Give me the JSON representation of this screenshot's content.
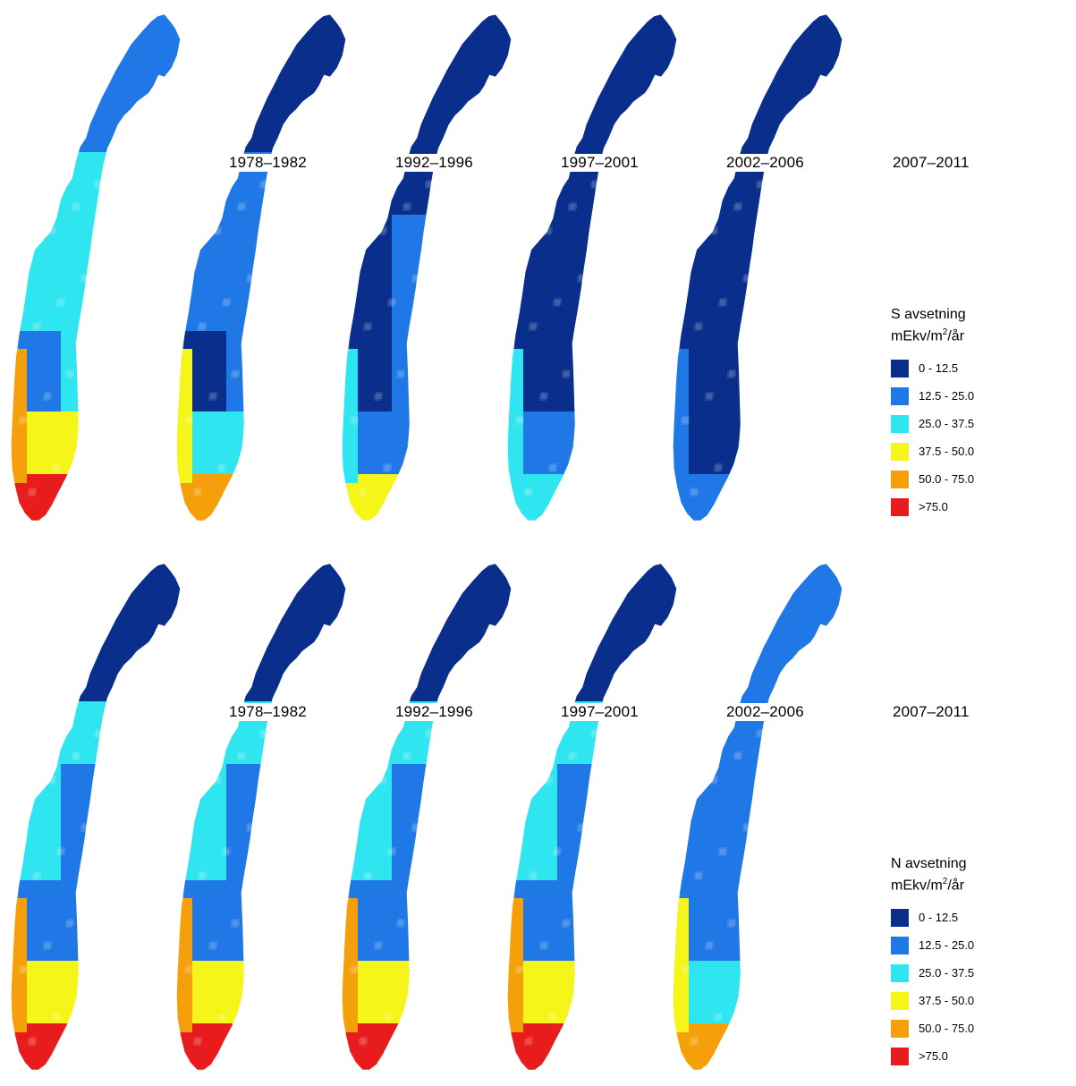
{
  "palette": {
    "0_12_5": "#0a2e8c",
    "12_5_25": "#1f78e6",
    "25_37_5": "#2fe6f0",
    "37_5_50": "#f6f51a",
    "50_75": "#f5a00a",
    "gt_75": "#e81c1c"
  },
  "periods": [
    "1978–1982",
    "1992–1996",
    "1997–2001",
    "2002–2006",
    "2007–2011"
  ],
  "panels": [
    {
      "id": "s",
      "legend": {
        "title": "S avsetning",
        "units_prefix": "mEkv/m",
        "units_sup": "2",
        "units_suffix": "/år",
        "items": [
          {
            "label": "0 - 12.5",
            "color": "#0a2e8c"
          },
          {
            "label": "12.5 - 25.0",
            "color": "#1f78e6"
          },
          {
            "label": "25.0 - 37.5",
            "color": "#2fe6f0"
          },
          {
            "label": "37.5 - 50.0",
            "color": "#f6f51a"
          },
          {
            "label": "50.0 - 75.0",
            "color": "#f5a00a"
          },
          {
            "label": ">75.0",
            "color": "#e81c1c"
          }
        ]
      },
      "maps": [
        {
          "period": "1978–1982",
          "north": "#1f78e6",
          "coast": "#2fe6f0",
          "central": "#1f78e6",
          "east": "#2fe6f0",
          "south_belt": "#f6f51a",
          "southwest": "#f5a00a",
          "south_tip": "#e81c1c"
        },
        {
          "period": "1992–1996",
          "north": "#0a2e8c",
          "coast": "#1f78e6",
          "central": "#0a2e8c",
          "east": "#1f78e6",
          "south_belt": "#2fe6f0",
          "southwest": "#f6f51a",
          "south_tip": "#f5a00a"
        },
        {
          "period": "1997–2001",
          "north": "#0a2e8c",
          "coast": "#0a2e8c",
          "central": "#0a2e8c",
          "east": "#1f78e6",
          "south_belt": "#1f78e6",
          "southwest": "#2fe6f0",
          "south_tip": "#f6f51a"
        },
        {
          "period": "2002–2006",
          "north": "#0a2e8c",
          "coast": "#0a2e8c",
          "central": "#0a2e8c",
          "east": "#0a2e8c",
          "south_belt": "#1f78e6",
          "southwest": "#2fe6f0",
          "south_tip": "#2fe6f0"
        },
        {
          "period": "2007–2011",
          "north": "#0a2e8c",
          "coast": "#0a2e8c",
          "central": "#0a2e8c",
          "east": "#0a2e8c",
          "south_belt": "#0a2e8c",
          "southwest": "#1f78e6",
          "south_tip": "#1f78e6"
        }
      ]
    },
    {
      "id": "n",
      "legend": {
        "title": "N avsetning",
        "units_prefix": "mEkv/m",
        "units_sup": "2",
        "units_suffix": "/år",
        "items": [
          {
            "label": "0 - 12.5",
            "color": "#0a2e8c"
          },
          {
            "label": "12.5 - 25.0",
            "color": "#1f78e6"
          },
          {
            "label": "25.0 - 37.5",
            "color": "#2fe6f0"
          },
          {
            "label": "37.5 - 50.0",
            "color": "#f6f51a"
          },
          {
            "label": "50.0 - 75.0",
            "color": "#f5a00a"
          },
          {
            "label": ">75.0",
            "color": "#e81c1c"
          }
        ]
      },
      "maps": [
        {
          "period": "1978–1982",
          "north": "#0a2e8c",
          "coast": "#2fe6f0",
          "central": "#1f78e6",
          "east": "#1f78e6",
          "south_belt": "#f6f51a",
          "southwest": "#f5a00a",
          "south_tip": "#e81c1c"
        },
        {
          "period": "1992–1996",
          "north": "#0a2e8c",
          "coast": "#2fe6f0",
          "central": "#1f78e6",
          "east": "#1f78e6",
          "south_belt": "#f6f51a",
          "southwest": "#f5a00a",
          "south_tip": "#e81c1c"
        },
        {
          "period": "1997–2001",
          "north": "#0a2e8c",
          "coast": "#2fe6f0",
          "central": "#1f78e6",
          "east": "#1f78e6",
          "south_belt": "#f6f51a",
          "southwest": "#f5a00a",
          "south_tip": "#e81c1c"
        },
        {
          "period": "2002–2006",
          "north": "#0a2e8c",
          "coast": "#2fe6f0",
          "central": "#1f78e6",
          "east": "#1f78e6",
          "south_belt": "#f6f51a",
          "southwest": "#f5a00a",
          "south_tip": "#e81c1c"
        },
        {
          "period": "2007–2011",
          "north": "#1f78e6",
          "coast": "#1f78e6",
          "central": "#1f78e6",
          "east": "#1f78e6",
          "south_belt": "#2fe6f0",
          "southwest": "#f6f51a",
          "south_tip": "#f5a00a"
        }
      ]
    }
  ]
}
